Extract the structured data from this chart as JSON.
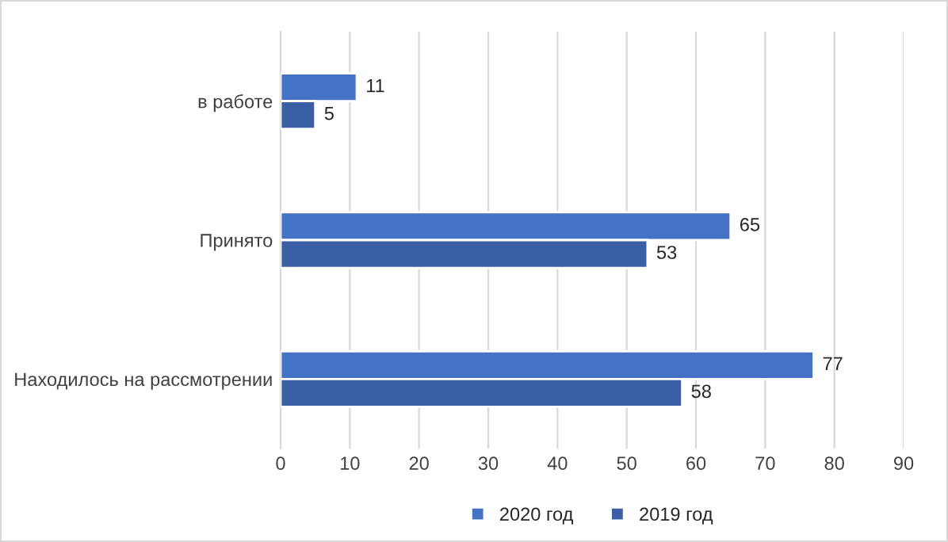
{
  "chart_data": {
    "type": "bar",
    "orientation": "horizontal",
    "categories": [
      "в работе",
      "Принято",
      "Находилось на рассмотрении"
    ],
    "series": [
      {
        "name": "2020 год",
        "color": "#4472c4",
        "values": [
          11,
          65,
          77
        ]
      },
      {
        "name": "2019 год",
        "color": "#3a5fa5",
        "values": [
          5,
          53,
          58
        ]
      }
    ],
    "xlim": [
      0,
      90
    ],
    "xticks": [
      0,
      10,
      20,
      30,
      40,
      50,
      60,
      70,
      80,
      90
    ],
    "grid": "x",
    "legend": "bottom",
    "data_labels": true
  }
}
